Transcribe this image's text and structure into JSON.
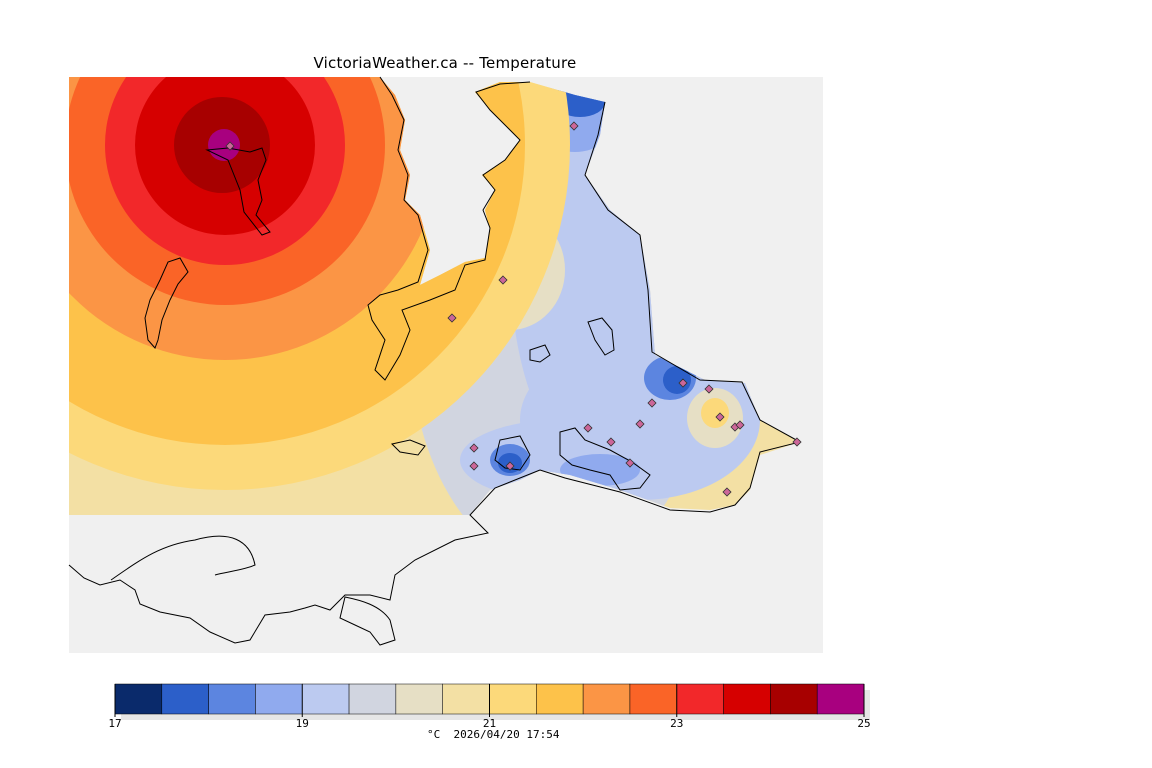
{
  "header": {
    "title": "VictoriaWeather.ca -- Temperature"
  },
  "legend": {
    "colors": [
      "#0a2a6b",
      "#2c5fc9",
      "#5c85e0",
      "#90aaee",
      "#bccaf0",
      "#d1d5e0",
      "#e6dfc5",
      "#f3e0a4",
      "#fcd97a",
      "#fdc24a",
      "#fb9545",
      "#fa6427",
      "#f2282a",
      "#d60000",
      "#a70000",
      "#a8007f"
    ],
    "tick_labels": [
      "17",
      "19",
      "21",
      "23",
      "25"
    ],
    "units_text": "°C  2026/04/20 17:54"
  },
  "map": {
    "station_marker_color": "#cc6699",
    "stations": 21
  }
}
